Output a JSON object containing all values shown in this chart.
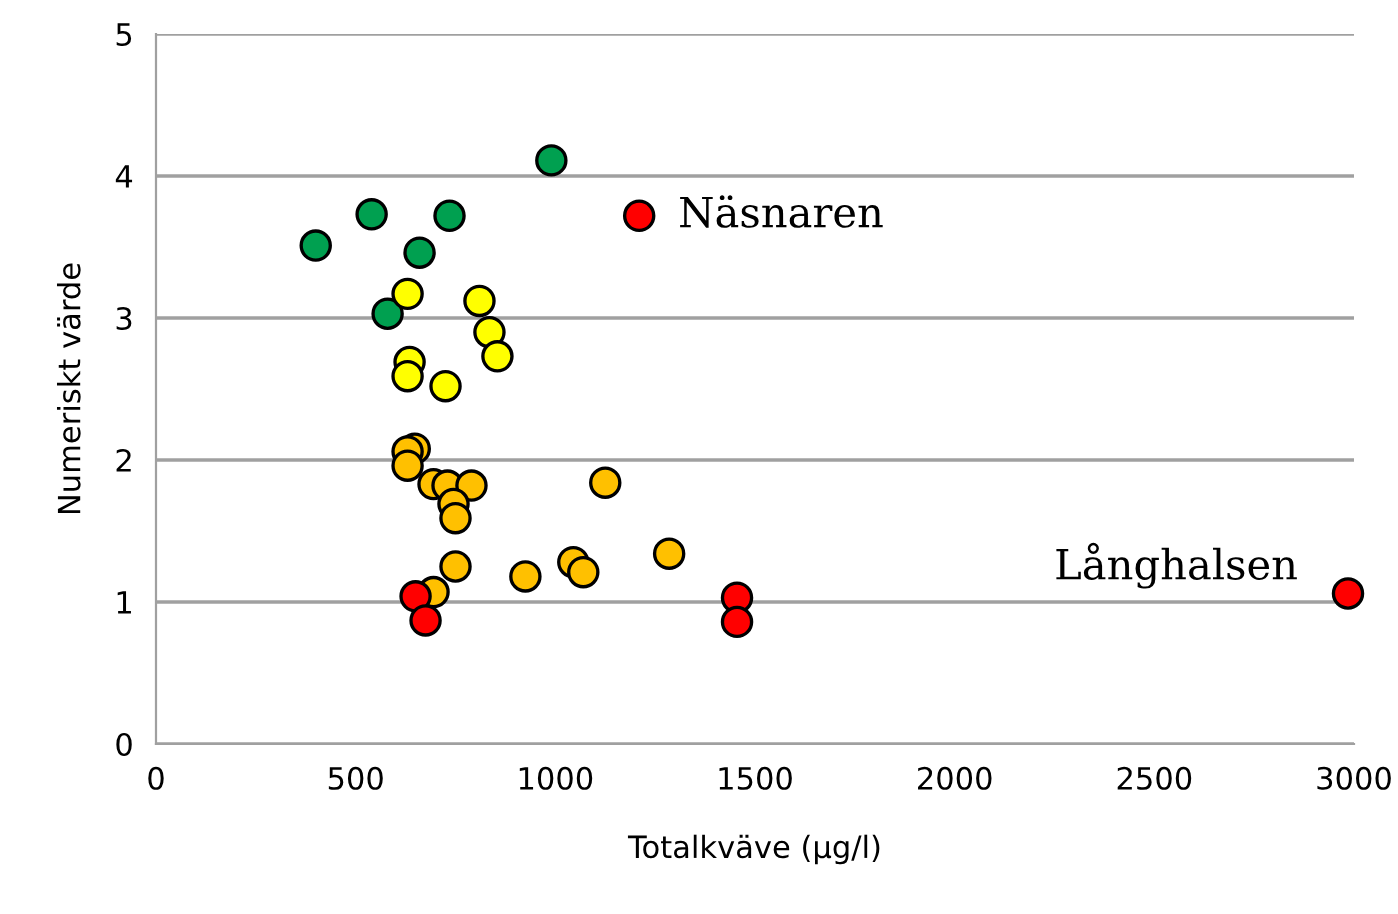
{
  "chart_data": {
    "type": "scatter",
    "xlabel": "Totalkväve (µg/l)",
    "ylabel": "Numeriskt värde",
    "xlim": [
      0,
      3000
    ],
    "xticks": [
      0,
      500,
      1000,
      1500,
      2000,
      2500,
      3000
    ],
    "ylim": [
      0,
      5
    ],
    "yticks": [
      0,
      1,
      2,
      3,
      4,
      5
    ],
    "grid": "y",
    "marker": "circle",
    "series": [
      {
        "color": "#00a050",
        "x": [
          400,
          540,
          735,
          660,
          580,
          990
        ],
        "values": [
          3.51,
          3.73,
          3.72,
          3.46,
          3.03,
          4.11
        ]
      },
      {
        "color": "#ffff00",
        "x": [
          630,
          810,
          835,
          855,
          635,
          630,
          725
        ],
        "values": [
          3.17,
          3.12,
          2.9,
          2.73,
          2.69,
          2.59,
          2.52
        ]
      },
      {
        "color": "#ffc000",
        "x": [
          648,
          630,
          630,
          695,
          730,
          790,
          745,
          750,
          1125,
          750,
          695,
          925,
          1045,
          1070,
          1285
        ],
        "values": [
          2.08,
          2.06,
          1.96,
          1.83,
          1.82,
          1.82,
          1.69,
          1.59,
          1.84,
          1.25,
          1.07,
          1.18,
          1.28,
          1.21,
          1.34
        ]
      },
      {
        "color": "#ff0000",
        "x": [
          1210,
          650,
          675,
          1455,
          1455,
          2985
        ],
        "values": [
          3.72,
          1.04,
          0.87,
          1.03,
          0.86,
          1.06
        ]
      }
    ],
    "annotations": [
      {
        "text": "Näsnaren",
        "x": 1210,
        "y": 3.72
      },
      {
        "text": "Långhalsen",
        "x": 2985,
        "y": 1.06
      }
    ]
  }
}
